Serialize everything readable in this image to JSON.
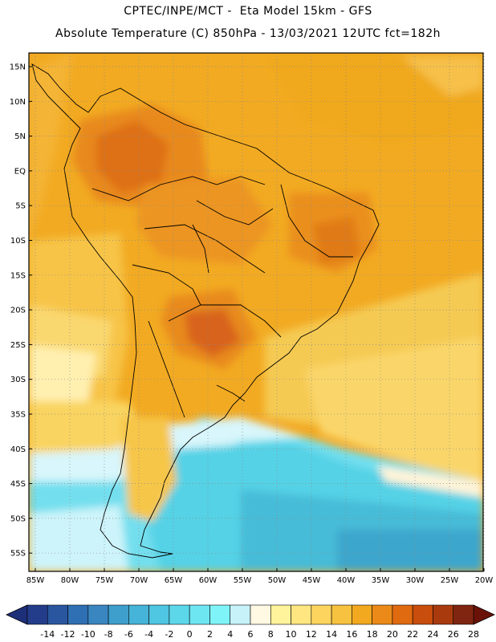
{
  "header": {
    "line1": "CPTEC/INPE/MCT -  Eta Model 15km - GFS",
    "line2": "Absolute Temperature (C) 850hPa - 13/03/2021 12UTC fct=182h"
  },
  "map": {
    "lat_labels": [
      "15N",
      "10N",
      "5N",
      "EQ",
      "5S",
      "10S",
      "15S",
      "20S",
      "25S",
      "30S",
      "35S",
      "40S",
      "45S",
      "50S",
      "55S"
    ],
    "lon_labels": [
      "85W",
      "80W",
      "75W",
      "70W",
      "65W",
      "60W",
      "55W",
      "50W",
      "45W",
      "40W",
      "35W",
      "30W",
      "25W",
      "20W"
    ]
  },
  "colorbar": {
    "labels": [
      "-14",
      "-12",
      "-10",
      "-8",
      "-6",
      "-4",
      "-2",
      "0",
      "2",
      "4",
      "6",
      "8",
      "10",
      "12",
      "14",
      "16",
      "18",
      "20",
      "22",
      "24",
      "26",
      "28"
    ],
    "colors": [
      "#243d8a",
      "#2a56a0",
      "#2f6fb3",
      "#3a86c0",
      "#3e9fcc",
      "#46b3d8",
      "#4fc6e2",
      "#5cd7ea",
      "#6ee6f2",
      "#7ff4f8",
      "#c8f2fa",
      "#fff8e3",
      "#fff39b",
      "#ffe680",
      "#fcd45e",
      "#f7c240",
      "#f2a81f",
      "#eb8a18",
      "#e06a10",
      "#c94d0c",
      "#a83a0e",
      "#7f2510"
    ],
    "arrow_low": "#1e2f7a",
    "arrow_high": "#6a1208"
  }
}
